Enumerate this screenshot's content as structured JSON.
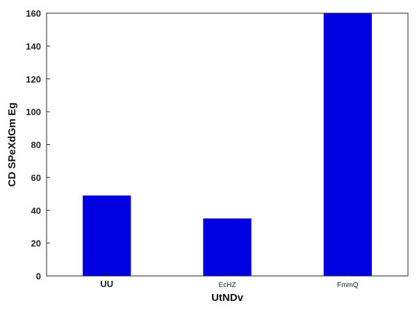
{
  "chart_data": {
    "type": "bar",
    "categories": [
      "UU",
      "EcHZ",
      "FmmQ"
    ],
    "values": [
      49,
      35,
      160
    ],
    "title": "",
    "xlabel": "UtNDv",
    "ylabel": "CD SPeXdGm  Eg",
    "ylim": [
      0,
      160
    ],
    "yticks": [
      0,
      20,
      40,
      60,
      80,
      100,
      120,
      140,
      160
    ],
    "grid": false,
    "legend": "none",
    "bar_color": "#0000e0",
    "category_label_style": [
      "bold",
      "small",
      "small"
    ]
  }
}
